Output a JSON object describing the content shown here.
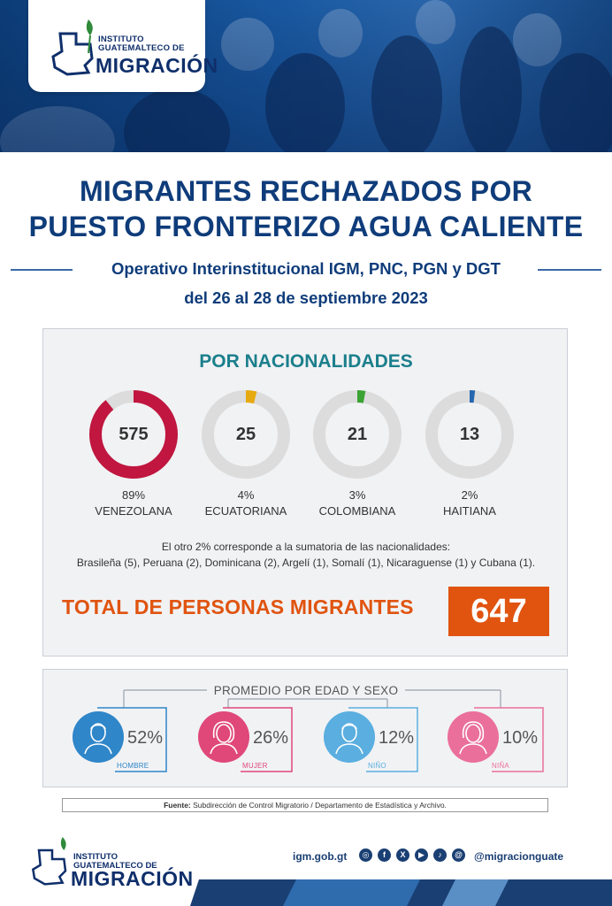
{
  "logo": {
    "line1": "INSTITUTO",
    "line2": "GUATEMALTECO DE",
    "name": "MIGRACIÓN"
  },
  "title": {
    "line1": "MIGRANTES RECHAZADOS POR",
    "line2": "PUESTO FRONTERIZO AGUA CALIENTE"
  },
  "subtitle": {
    "line1": "Operativo Interinstitucional IGM, PNC, PGN y DGT",
    "line2": "del 26 al 28 de septiembre 2023"
  },
  "nationalities": {
    "heading": "POR NACIONALIDADES",
    "items": [
      {
        "count": "575",
        "percent": "89%",
        "name": "VENEZOLANA",
        "fraction": 0.89,
        "color": "#c0163f"
      },
      {
        "count": "25",
        "percent": "4%",
        "name": "ECUATORIANA",
        "fraction": 0.04,
        "color": "#e7a911"
      },
      {
        "count": "21",
        "percent": "3%",
        "name": "COLOMBIANA",
        "fraction": 0.03,
        "color": "#3aa333"
      },
      {
        "count": "13",
        "percent": "2%",
        "name": "HAITIANA",
        "fraction": 0.02,
        "color": "#2466b0"
      }
    ],
    "note_line1": "El otro 2% corresponde a la sumatoria de las nacionalidades:",
    "note_line2": "Brasileña (5), Peruana (2), Dominicana (2), Argelí (1), Somalí (1), Nicaraguense (1) y Cubana (1)."
  },
  "total": {
    "label": "TOTAL DE PERSONAS MIGRANTES",
    "value": "647"
  },
  "age_sex": {
    "heading": "PROMEDIO POR EDAD Y SEXO",
    "items": [
      {
        "percent": "52%",
        "label": "HOMBRE",
        "color": "#2f86c9",
        "icon": "man-icon"
      },
      {
        "percent": "26%",
        "label": "MUJER",
        "color": "#e0487a",
        "icon": "woman-icon"
      },
      {
        "percent": "12%",
        "label": "NIÑO",
        "color": "#5aaee0",
        "icon": "boy-icon"
      },
      {
        "percent": "10%",
        "label": "NIÑA",
        "color": "#ea6f9a",
        "icon": "girl-icon"
      }
    ]
  },
  "source": {
    "label": "Fuente:",
    "text": "Subdirección de Control Migratorio / Departamento de Estadística y Archivo."
  },
  "footer": {
    "website": "igm.gob.gt",
    "handle": "@migracionguate",
    "social_icons": [
      "instagram-icon",
      "facebook-icon",
      "x-icon",
      "youtube-icon",
      "tiktok-icon",
      "threads-icon"
    ]
  }
}
